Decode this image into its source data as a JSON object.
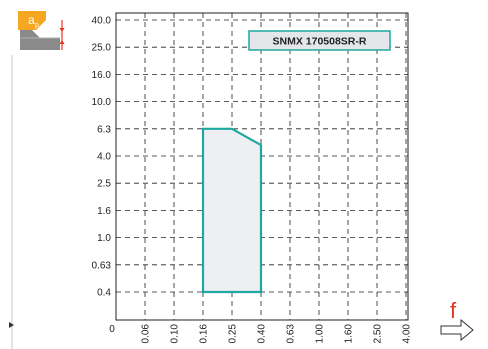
{
  "chart_data": {
    "type": "area",
    "title": "SNMX 170508SR-R",
    "x_ticks": [
      "0.06",
      "0.10",
      "0.16",
      "0.25",
      "0.40",
      "0.63",
      "1.00",
      "1.60",
      "2.50",
      "4.00"
    ],
    "y_ticks": [
      "0.4",
      "0.63",
      "1.0",
      "1.6",
      "2.5",
      "4.0",
      "6.3",
      "10.0",
      "16.0",
      "25.0",
      "40.0"
    ],
    "x_origin_label": "0",
    "x_scale": "log",
    "y_scale": "log",
    "xlim": [
      0.04,
      4.0
    ],
    "ylim": [
      0.25,
      40.0
    ],
    "x_axis_symbol": "f",
    "y_axis_symbol": "ap",
    "grid": true,
    "region": {
      "points": [
        {
          "x": 0.16,
          "y": 0.4
        },
        {
          "x": 0.16,
          "y": 6.3
        },
        {
          "x": 0.25,
          "y": 6.3
        },
        {
          "x": 0.4,
          "y": 4.8
        },
        {
          "x": 0.4,
          "y": 0.4
        }
      ],
      "fill": "#eeeff2",
      "stroke": "#1fa8a0"
    },
    "colors": {
      "accent": "#e8311f",
      "icon_orange": "#f5a623",
      "icon_gray": "#8a8a8a",
      "label_box": "#e4e6ea"
    }
  }
}
